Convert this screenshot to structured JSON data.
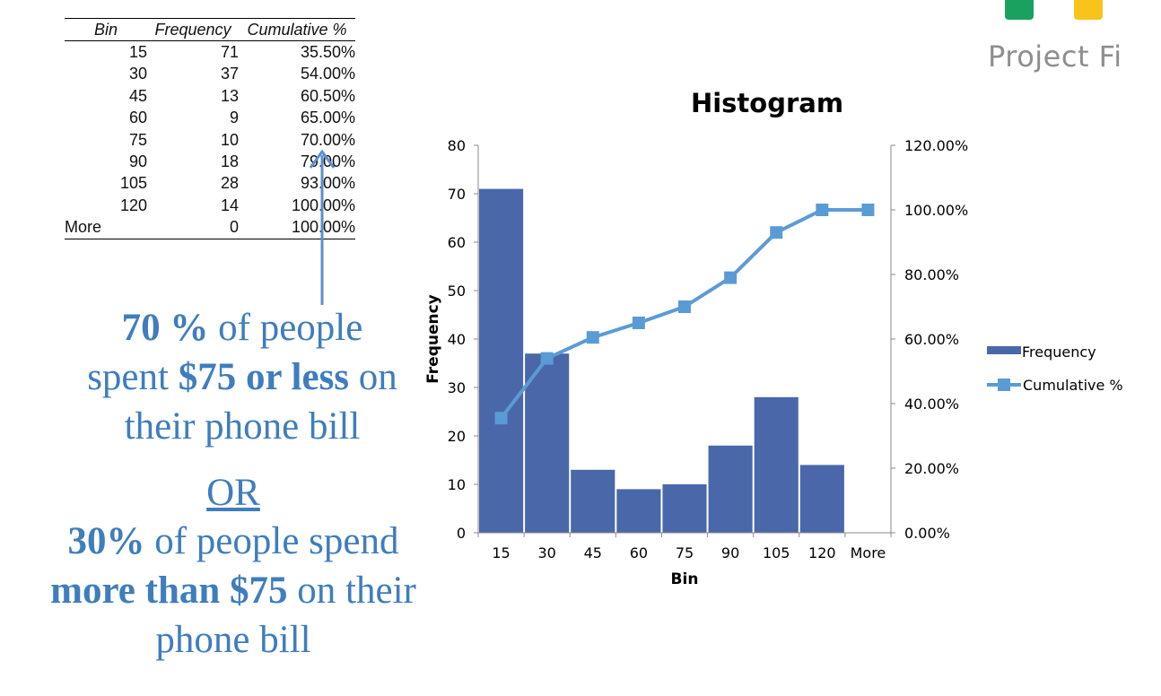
{
  "logo": {
    "text": "Project Fi",
    "colors": [
      "#1aa15f",
      "#f8c31c"
    ]
  },
  "table": {
    "headers": [
      "Bin",
      "Frequency",
      "Cumulative %"
    ],
    "rows": [
      [
        "15",
        "71",
        "35.50%"
      ],
      [
        "30",
        "37",
        "54.00%"
      ],
      [
        "45",
        "13",
        "60.50%"
      ],
      [
        "60",
        "9",
        "65.00%"
      ],
      [
        "75",
        "10",
        "70.00%"
      ],
      [
        "90",
        "18",
        "79.00%"
      ],
      [
        "105",
        "28",
        "93.00%"
      ],
      [
        "120",
        "14",
        "100.00%"
      ],
      [
        "More",
        "0",
        "100.00%"
      ]
    ]
  },
  "annotations": {
    "line1": {
      "bold": "70 %",
      "text": " of people"
    },
    "line2": {
      "pre": "spent ",
      "bold": "$75 or less",
      "post": " on"
    },
    "line3": "their phone bill",
    "or": "OR",
    "line4": {
      "bold": "30%",
      "text": " of people spend"
    },
    "line5": {
      "bold": "more than $75",
      "post": " on their"
    },
    "line6": "phone bill",
    "color": "#3f7dbd"
  },
  "chart_data": {
    "type": "bar",
    "title": "Histogram",
    "xlabel": "Bin",
    "ylabel": "Frequency",
    "categories": [
      "15",
      "30",
      "45",
      "60",
      "75",
      "90",
      "105",
      "120",
      "More"
    ],
    "ylim": [
      0,
      80
    ],
    "yticks": [
      "0",
      "10",
      "20",
      "30",
      "40",
      "50",
      "60",
      "70",
      "80"
    ],
    "y2lim": [
      0,
      120
    ],
    "y2ticks": [
      "0.00%",
      "20.00%",
      "40.00%",
      "60.00%",
      "80.00%",
      "100.00%",
      "120.00%"
    ],
    "series": [
      {
        "name": "Frequency",
        "type": "bar",
        "axis": "left",
        "color": "#4a67aa",
        "values": [
          71,
          37,
          13,
          9,
          10,
          18,
          28,
          14,
          0
        ]
      },
      {
        "name": "Cumulative %",
        "type": "line",
        "axis": "right",
        "color": "#5b9bd5",
        "values": [
          35.5,
          54,
          60.5,
          65,
          70,
          79,
          93,
          100,
          100
        ]
      }
    ],
    "legend": "right",
    "grid": false
  }
}
